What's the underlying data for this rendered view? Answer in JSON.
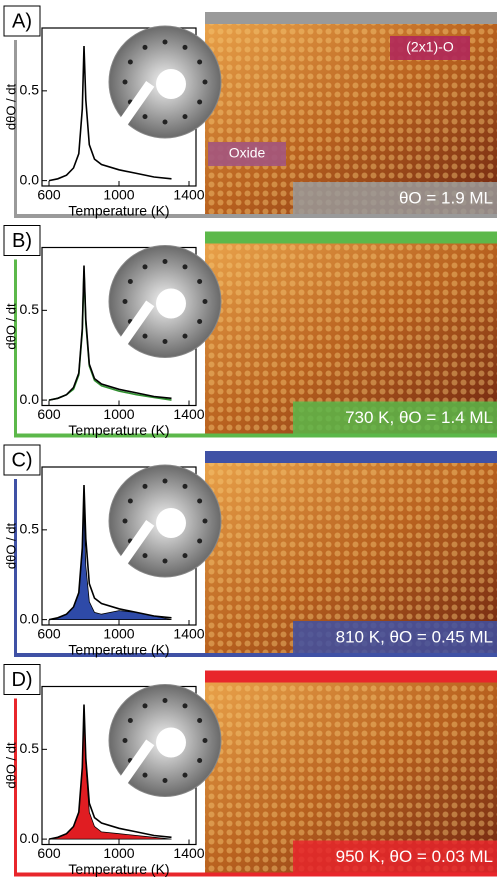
{
  "chart_data": [
    {
      "type": "line",
      "panel_label": "A)",
      "xlabel": "Temperature (K)",
      "ylabel": "dθO / dt",
      "accent_color": "#9a9a9a",
      "image_labels": [
        "(2x1)-O",
        "Oxide"
      ],
      "condition": "θO = 1.9 ML",
      "x": [
        600,
        650,
        700,
        740,
        770,
        790,
        800,
        810,
        830,
        860,
        900,
        1000,
        1100,
        1200,
        1300
      ],
      "series": [
        {
          "color": "#000000",
          "fill": false,
          "values": [
            0.0,
            0.01,
            0.03,
            0.07,
            0.15,
            0.4,
            0.75,
            0.45,
            0.2,
            0.12,
            0.09,
            0.06,
            0.04,
            0.02,
            0.01
          ]
        }
      ],
      "xlim": [
        560,
        1440
      ],
      "ylim": [
        -0.03,
        0.85
      ],
      "xticks": [
        600,
        1000,
        1400
      ],
      "yticks": [
        {
          "value": 0,
          "label": "0.0"
        },
        0.5
      ]
    },
    {
      "type": "line",
      "panel_label": "B)",
      "xlabel": "Temperature (K)",
      "ylabel": "dθO / dt",
      "accent_color": "#5cb84a",
      "image_labels": [],
      "condition": "730 K, θO = 1.4 ML",
      "x": [
        600,
        650,
        700,
        740,
        770,
        790,
        800,
        810,
        830,
        860,
        900,
        1000,
        1100,
        1200,
        1300
      ],
      "series": [
        {
          "color": "#2f8f2f",
          "fill": false,
          "values": [
            0.0,
            0.01,
            0.03,
            0.06,
            0.14,
            0.38,
            0.72,
            0.43,
            0.19,
            0.11,
            0.08,
            0.05,
            0.03,
            0.015,
            0.0
          ]
        },
        {
          "color": "#000000",
          "fill": false,
          "values": [
            0.0,
            0.01,
            0.03,
            0.07,
            0.15,
            0.4,
            0.75,
            0.45,
            0.2,
            0.12,
            0.09,
            0.06,
            0.04,
            0.02,
            0.01
          ]
        }
      ],
      "xlim": [
        560,
        1440
      ],
      "ylim": [
        -0.03,
        0.85
      ],
      "xticks": [
        600,
        1000,
        1400
      ],
      "yticks": [
        {
          "value": 0,
          "label": "0.0"
        },
        0.5
      ]
    },
    {
      "type": "line",
      "panel_label": "C)",
      "xlabel": "Temperature (K)",
      "ylabel": "dθO / dt",
      "accent_color": "#3f51a5",
      "image_labels": [],
      "condition": "810 K, θO = 0.45 ML",
      "x": [
        600,
        650,
        700,
        740,
        770,
        790,
        800,
        810,
        830,
        860,
        900,
        1000,
        1100,
        1200,
        1300
      ],
      "series": [
        {
          "color": "#2e4aa8",
          "fill": true,
          "values": [
            0.0,
            0.01,
            0.03,
            0.07,
            0.15,
            0.38,
            0.62,
            0.3,
            0.1,
            0.04,
            0.03,
            0.05,
            0.04,
            0.02,
            0.0
          ]
        },
        {
          "color": "#000000",
          "fill": false,
          "values": [
            0.0,
            0.01,
            0.03,
            0.07,
            0.15,
            0.4,
            0.75,
            0.45,
            0.2,
            0.12,
            0.09,
            0.06,
            0.04,
            0.02,
            0.01
          ]
        }
      ],
      "xlim": [
        560,
        1440
      ],
      "ylim": [
        -0.03,
        0.85
      ],
      "xticks": [
        600,
        1000,
        1400
      ],
      "yticks": [
        {
          "value": 0,
          "label": "0.0"
        },
        0.5
      ]
    },
    {
      "type": "line",
      "panel_label": "D)",
      "xlabel": "Temperature (K)",
      "ylabel": "dθO / dt",
      "accent_color": "#e8262b",
      "image_labels": [],
      "condition": "950 K, θO = 0.03 ML",
      "x": [
        600,
        650,
        700,
        740,
        770,
        790,
        800,
        810,
        830,
        860,
        900,
        1000,
        1100,
        1200,
        1300
      ],
      "series": [
        {
          "color": "#e01d22",
          "fill": true,
          "values": [
            0.0,
            0.01,
            0.03,
            0.07,
            0.15,
            0.4,
            0.72,
            0.42,
            0.15,
            0.07,
            0.04,
            0.03,
            0.02,
            0.01,
            0.0
          ]
        },
        {
          "color": "#000000",
          "fill": false,
          "values": [
            0.0,
            0.01,
            0.03,
            0.07,
            0.15,
            0.4,
            0.75,
            0.45,
            0.2,
            0.12,
            0.09,
            0.06,
            0.04,
            0.02,
            0.01
          ]
        }
      ],
      "xlim": [
        560,
        1440
      ],
      "ylim": [
        -0.03,
        0.85
      ],
      "xticks": [
        600,
        1000,
        1400
      ],
      "yticks": [
        {
          "value": 0,
          "label": "0.0"
        },
        0.5
      ]
    }
  ]
}
